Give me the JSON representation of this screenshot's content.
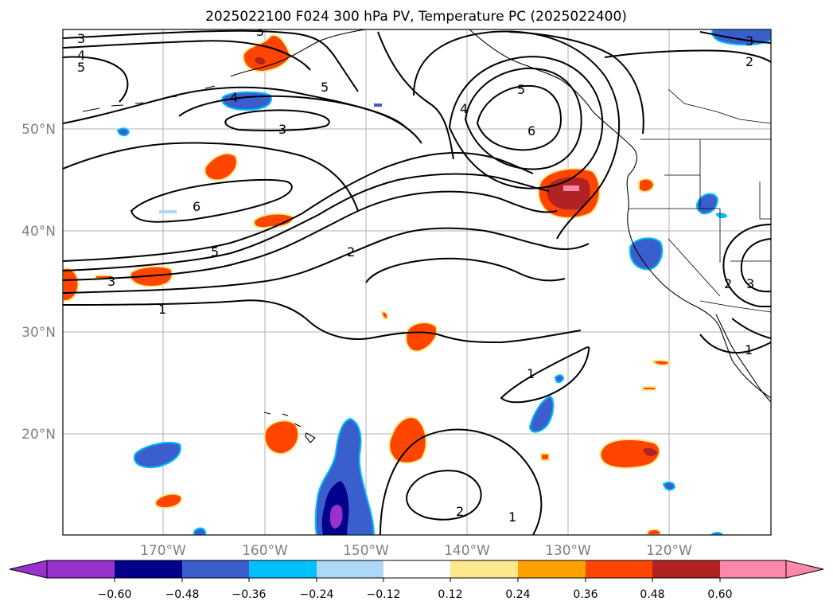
{
  "title": "2025022100 F024 300 hPa PV, Temperature PC (2025022400)",
  "colors": {
    "purple": "#9932cc",
    "navy": "#00008b",
    "royal_blue": "#3a5fcd",
    "deep_sky": "#00bfff",
    "light_sky": "#add8f7",
    "white": "#ffffff",
    "light_yellow": "#ffe88c",
    "orange": "#ffa000",
    "orange_red": "#ff4500",
    "firebrick": "#b22222",
    "pink": "#ff88aa"
  },
  "axes": {
    "lat_labels": [
      "50°N",
      "40°N",
      "30°N",
      "20°N"
    ],
    "lon_labels": [
      "170°W",
      "160°W",
      "150°W",
      "140°W",
      "130°W",
      "120°W"
    ]
  },
  "colorbar": {
    "ticks": [
      "−0.60",
      "−0.48",
      "−0.36",
      "−0.24",
      "−0.12",
      "0.12",
      "0.24",
      "0.36",
      "0.48",
      "0.60"
    ],
    "segment_colors": [
      "#9932cc",
      "#00008b",
      "#3a5fcd",
      "#00bfff",
      "#add8f7",
      "#ffffff",
      "#ffe88c",
      "#ffa000",
      "#ff4500",
      "#b22222",
      "#ff88aa"
    ]
  },
  "contour_labels": [
    "3",
    "4",
    "5",
    "5",
    "4",
    "3",
    "6",
    "5",
    "3",
    "5",
    "2",
    "1",
    "5",
    "4",
    "6",
    "3",
    "2",
    "1",
    "2",
    "1",
    "1",
    "3",
    "2"
  ]
}
